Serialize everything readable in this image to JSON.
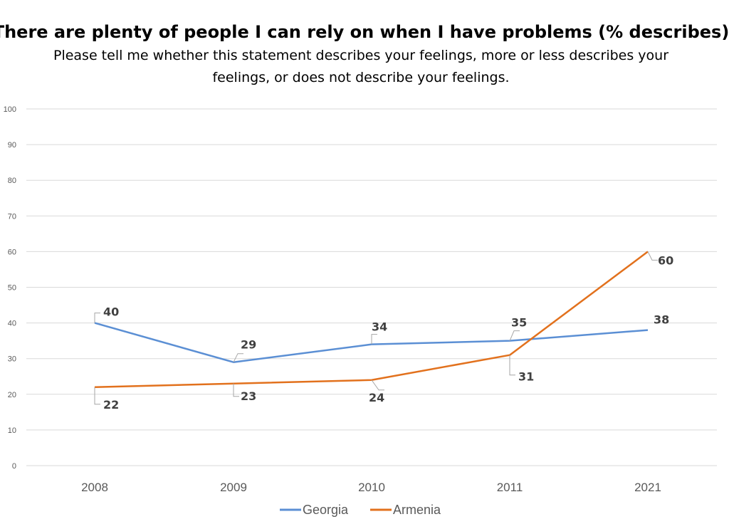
{
  "chart_data": {
    "type": "line",
    "title": "There are plenty of people I can rely on when I have problems (% describes)",
    "subtitle_lines": [
      "Please tell me whether this statement describes your feelings, more or less describes your",
      "feelings, or does not describe your feelings."
    ],
    "categories": [
      "2008",
      "2009",
      "2010",
      "2011",
      "2021"
    ],
    "series": [
      {
        "name": "Georgia",
        "color": "#5b8fd4",
        "values": [
          40,
          29,
          34,
          35,
          38
        ]
      },
      {
        "name": "Armenia",
        "color": "#e2711d",
        "values": [
          22,
          23,
          24,
          31,
          60
        ]
      }
    ],
    "yticks": [
      "0",
      "10",
      "20",
      "30",
      "40",
      "50",
      "60",
      "70",
      "80",
      "90",
      "100"
    ],
    "ylim": [
      0,
      100
    ],
    "grid": true,
    "legend_position": "bottom"
  }
}
